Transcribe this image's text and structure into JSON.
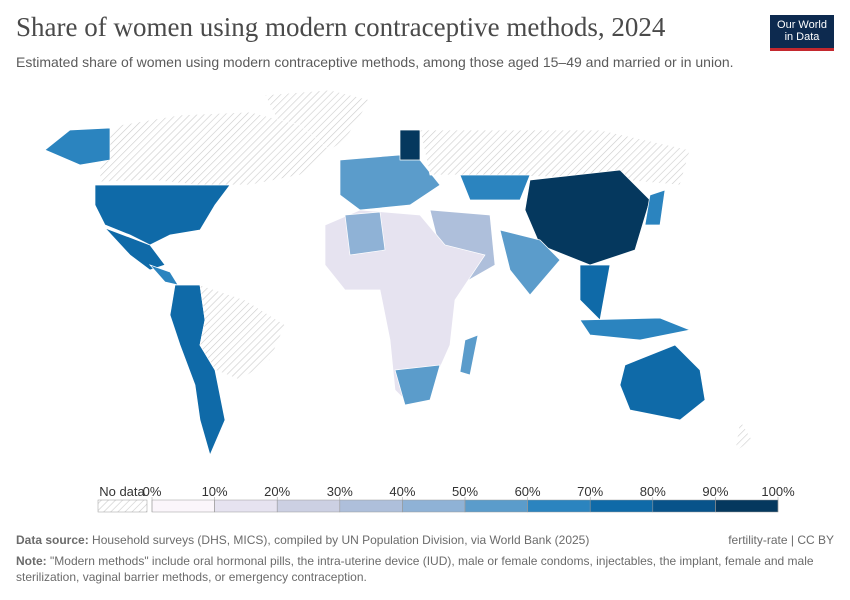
{
  "header": {
    "title": "Share of women using modern contraceptive methods, 2024",
    "subtitle": "Estimated share of women using modern contraceptive methods, among those aged 15–49 and married or in union.",
    "logo": [
      "Our World",
      "in Data"
    ]
  },
  "chart_data": {
    "type": "map",
    "legend": {
      "no_data_label": "No data",
      "ticks": [
        {
          "value": 0,
          "label": "0%"
        },
        {
          "value": 10,
          "label": "10%"
        },
        {
          "value": 20,
          "label": "20%"
        },
        {
          "value": 30,
          "label": "30%"
        },
        {
          "value": 40,
          "label": "40%"
        },
        {
          "value": 50,
          "label": "50%"
        },
        {
          "value": 60,
          "label": "60%"
        },
        {
          "value": 70,
          "label": "70%"
        },
        {
          "value": 80,
          "label": "80%"
        },
        {
          "value": 90,
          "label": "90%"
        },
        {
          "value": 100,
          "label": "100%"
        }
      ],
      "colors": [
        "#fbf6fb",
        "#e6e3f0",
        "#ccd0e3",
        "#aebfdb",
        "#8fb2d6",
        "#5b9ccb",
        "#2b84bf",
        "#0f6aa8",
        "#08538a",
        "#05385e"
      ]
    }
  },
  "footer": {
    "source_label": "Data source:",
    "source": "Household surveys (DHS, MICS), compiled by UN Population Division, via World Bank (2025)",
    "license": "fertility-rate | CC BY",
    "note_label": "Note:",
    "note": "\"Modern methods\" include oral hormonal pills, the intra-uterine device (IUD), male or female condoms, injectables, the implant, female and male sterilization, vaginal barrier methods, or emergency contraception."
  }
}
